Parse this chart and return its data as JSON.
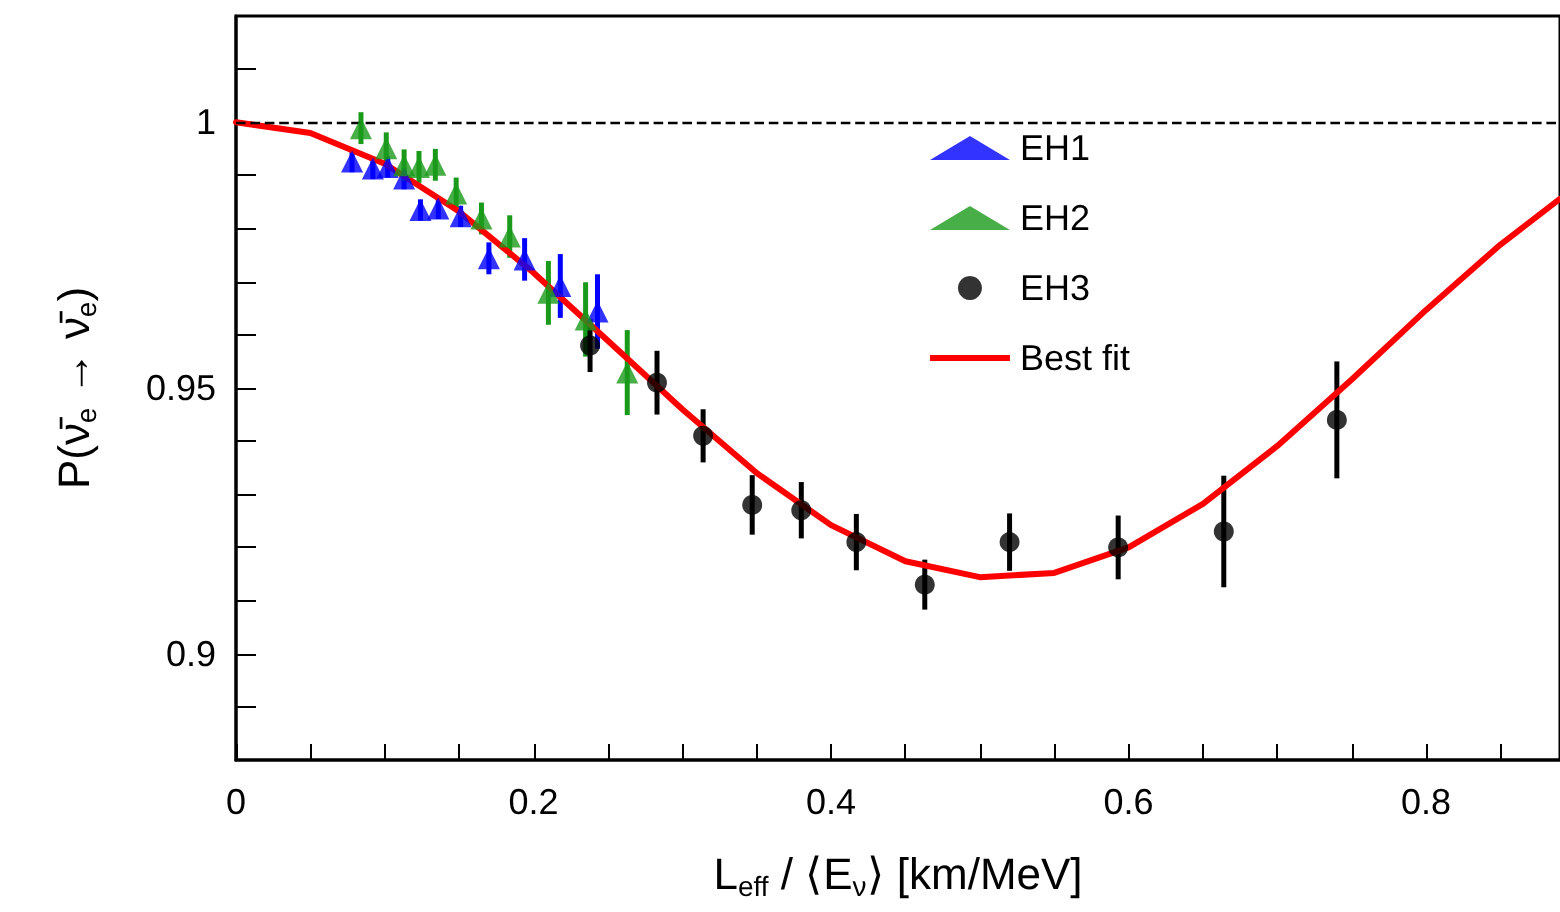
{
  "chart_data": {
    "type": "scatter",
    "xlabel": "L$_{eff}$ / ⟨E$_{ν}$⟩ [km/MeV]",
    "ylabel": "P(ν̄$_{e}$ → ν̄$_{e}$)",
    "xlim": [
      0,
      0.89
    ],
    "xticks": [
      0,
      {
        "value": 0.05,
        "label": null
      },
      {
        "value": 0.1,
        "label": null
      },
      {
        "value": 0.15,
        "label": null
      },
      0.2,
      {
        "value": 0.25,
        "label": null
      },
      {
        "value": 0.3,
        "label": null
      },
      {
        "value": 0.35,
        "label": null
      },
      0.4,
      {
        "value": 0.45,
        "label": null
      },
      {
        "value": 0.5,
        "label": null
      },
      {
        "value": 0.55,
        "label": null
      },
      0.6,
      {
        "value": 0.65,
        "label": null
      },
      {
        "value": 0.7,
        "label": null
      },
      {
        "value": 0.75,
        "label": null
      },
      0.8,
      {
        "value": 0.85,
        "label": null
      }
    ],
    "ylim": [
      0.88,
      1.02
    ],
    "yticks": [
      {
        "value": 0.89,
        "label": null
      },
      0.9,
      {
        "value": 0.91,
        "label": null
      },
      {
        "value": 0.92,
        "label": null
      },
      {
        "value": 0.93,
        "label": null
      },
      {
        "value": 0.94,
        "label": null
      },
      0.95,
      {
        "value": 0.96,
        "label": null
      },
      {
        "value": 0.97,
        "label": null
      },
      {
        "value": 0.98,
        "label": null
      },
      {
        "value": 0.99,
        "label": null
      },
      1,
      {
        "value": 1.01,
        "label": null
      }
    ],
    "grid": false,
    "legend": "top right",
    "ref_lines": [
      {
        "axis": "y",
        "value": 1,
        "label": null,
        "color": "#000000",
        "line_style": "dashed"
      }
    ],
    "series": [
      {
        "name": "EH1",
        "marker": "triangle",
        "color": "#0000ff",
        "x": [
          0.078,
          0.092,
          0.102,
          0.113,
          0.124,
          0.136,
          0.151,
          0.17,
          0.194,
          0.218,
          0.243
        ],
        "values": [
          0.9926,
          0.9913,
          0.9916,
          0.9894,
          0.9835,
          0.9838,
          0.9823,
          0.9744,
          0.9742,
          0.9692,
          0.9644
        ],
        "errors": [
          0.002,
          0.002,
          0.002,
          0.002,
          0.002,
          0.002,
          0.002,
          0.003,
          0.004,
          0.006,
          0.007
        ]
      },
      {
        "name": "EH2",
        "marker": "triangle",
        "color": "#1a9a1a",
        "x": [
          0.084,
          0.101,
          0.113,
          0.123,
          0.134,
          0.148,
          0.165,
          0.184,
          0.21,
          0.235,
          0.263
        ],
        "values": [
          0.9989,
          0.9951,
          0.9919,
          0.9916,
          0.992,
          0.9866,
          0.9819,
          0.9785,
          0.9679,
          0.9629,
          0.9529
        ],
        "errors": [
          0.003,
          0.003,
          0.003,
          0.003,
          0.003,
          0.003,
          0.003,
          0.004,
          0.006,
          0.007,
          0.008
        ]
      },
      {
        "name": "EH3",
        "marker": "circle",
        "color": "#000000",
        "x": [
          0.238,
          0.283,
          0.314,
          0.347,
          0.38,
          0.417,
          0.463,
          0.52,
          0.593,
          0.664,
          0.74
        ],
        "values": [
          0.958,
          0.951,
          0.941,
          0.928,
          0.927,
          0.921,
          0.913,
          0.921,
          0.92,
          0.923,
          0.944
        ],
        "errors": [
          0.005,
          0.006,
          0.005,
          0.0056,
          0.0053,
          0.0053,
          0.0047,
          0.0054,
          0.006,
          0.0105,
          0.011
        ]
      },
      {
        "name": "Best fit",
        "type": "line",
        "marker": "none",
        "color": "#ff0000",
        "x": [
          0,
          0.05,
          0.1,
          0.15,
          0.2,
          0.25,
          0.3,
          0.35,
          0.4,
          0.45,
          0.5,
          0.55,
          0.6,
          0.65,
          0.7,
          0.75,
          0.8,
          0.85,
          0.89
        ],
        "values": [
          1,
          0.998,
          0.9922,
          0.9832,
          0.9717,
          0.9589,
          0.946,
          0.934,
          0.9242,
          0.9174,
          0.9144,
          0.9152,
          0.92,
          0.9282,
          0.9391,
          0.9516,
          0.9647,
          0.977,
          0.9856
        ]
      }
    ]
  }
}
